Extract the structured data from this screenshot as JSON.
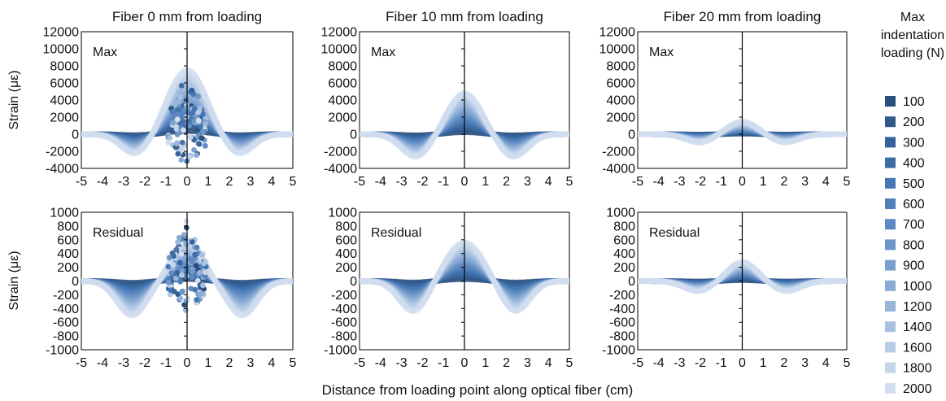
{
  "chart_data": {
    "type": "scatter",
    "xlabel": "Distance from loading point along optical fiber (cm)",
    "ylabel": "Strain (με)",
    "xlim": [
      -5,
      5
    ],
    "xticks": [
      -5,
      -4,
      -3,
      -2,
      -1,
      0,
      1,
      2,
      3,
      4,
      5
    ],
    "legend": {
      "title_lines": [
        "Max",
        "indentation",
        "loading (N)"
      ],
      "placement": "right",
      "loads": [
        100,
        200,
        300,
        400,
        500,
        600,
        700,
        800,
        900,
        1000,
        1200,
        1400,
        1600,
        1800,
        2000
      ],
      "colors": [
        "#2b4f7c",
        "#30598a",
        "#36639a",
        "#3d6da7",
        "#4677b2",
        "#5181bb",
        "#5d8ac2",
        "#6c95c8",
        "#7ba0ce",
        "#8aabd4",
        "#99b6da",
        "#a8c1e0",
        "#b6cbe5",
        "#c4d5ea",
        "#d2deef"
      ]
    },
    "rows": [
      {
        "kind": "Max",
        "ylim": [
          -4000,
          12000
        ],
        "yticks": [
          12000,
          10000,
          8000,
          6000,
          4000,
          2000,
          0,
          -2000,
          -4000
        ]
      },
      {
        "kind": "Residual",
        "ylim": [
          -1000,
          1000
        ],
        "yticks": [
          1000,
          800,
          600,
          400,
          200,
          0,
          -200,
          -400,
          -600,
          -800,
          -1000
        ]
      }
    ],
    "panels": [
      {
        "row": 0,
        "col": 0,
        "title": "Fiber 0 mm from loading",
        "label": "Max",
        "peak": 7500,
        "trough": -2400,
        "sigma": 0.9,
        "trough_pos": 2.4,
        "scatter": 5500
      },
      {
        "row": 0,
        "col": 1,
        "title": "Fiber 10 mm from loading",
        "label": "Max",
        "peak": 4800,
        "trough": -2700,
        "sigma": 0.8,
        "trough_pos": 2.3,
        "scatter": 0
      },
      {
        "row": 0,
        "col": 2,
        "title": "Fiber 20 mm from loading",
        "label": "Max",
        "peak": 1500,
        "trough": -1000,
        "sigma": 0.75,
        "trough_pos": 2.0,
        "scatter": 0
      },
      {
        "row": 1,
        "col": 0,
        "label": "Residual",
        "peak": 600,
        "trough": -500,
        "sigma": 0.7,
        "trough_pos": 2.6,
        "scatter": 700
      },
      {
        "row": 1,
        "col": 1,
        "label": "Residual",
        "peak": 560,
        "trough": -450,
        "sigma": 0.9,
        "trough_pos": 2.4,
        "scatter": 0
      },
      {
        "row": 1,
        "col": 2,
        "label": "Residual",
        "peak": 280,
        "trough": -150,
        "sigma": 0.7,
        "trough_pos": 2.1,
        "scatter": 0
      }
    ]
  }
}
